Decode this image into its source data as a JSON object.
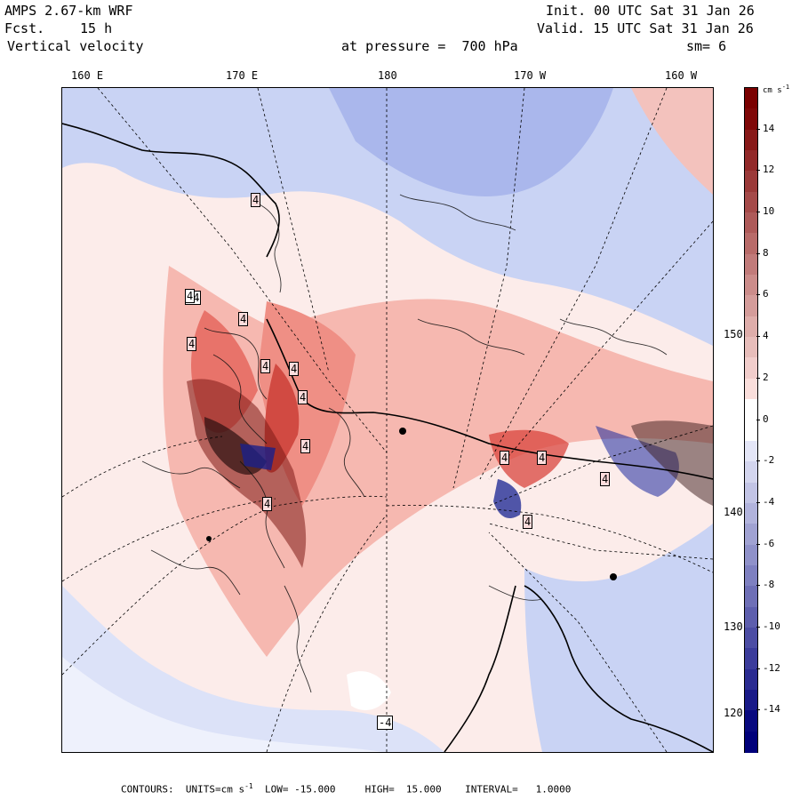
{
  "header": {
    "model": "AMPS 2.67-km WRF",
    "forecast_label": "Fcst.",
    "forecast_value": "15 h",
    "field": "Vertical velocity",
    "init": "Init. 00 UTC Sat 31 Jan 26",
    "valid": "Valid. 15 UTC Sat 31 Jan 26",
    "level": "at pressure =  700 hPa",
    "smoothing": "sm= 6"
  },
  "longitude_labels": [
    "160 E",
    "170 E",
    "180",
    "170 W",
    "160 W"
  ],
  "latitude_labels": [
    "150 W",
    "140 W",
    "130 W",
    "120 W"
  ],
  "colorbar": {
    "unit": "cm s",
    "unit_exp": "-1",
    "labels": [
      "14",
      "12",
      "10",
      "8",
      "6",
      "4",
      "2",
      "0",
      "-2",
      "-4",
      "-6",
      "-8",
      "-10",
      "-12",
      "-14"
    ],
    "colors": {
      "pos_dark": "#7a0000",
      "pos_light": "#ffe6e3",
      "neg_light": "#eceffc",
      "neg_dark": "#00007a",
      "zero": "#ffffff"
    }
  },
  "map_labels": [
    "4",
    "4",
    "-4",
    "4",
    "4",
    "4",
    "4",
    "4",
    "4",
    "4",
    "4",
    "4",
    "4",
    "4",
    "-4"
  ],
  "footer": {
    "contours": "CONTOURS:  UNITS=cm s",
    "units_exp": "-1",
    "low": "LOW= -15.000",
    "high": "HIGH=  15.000",
    "interval": "INTERVAL=   1.0000"
  }
}
